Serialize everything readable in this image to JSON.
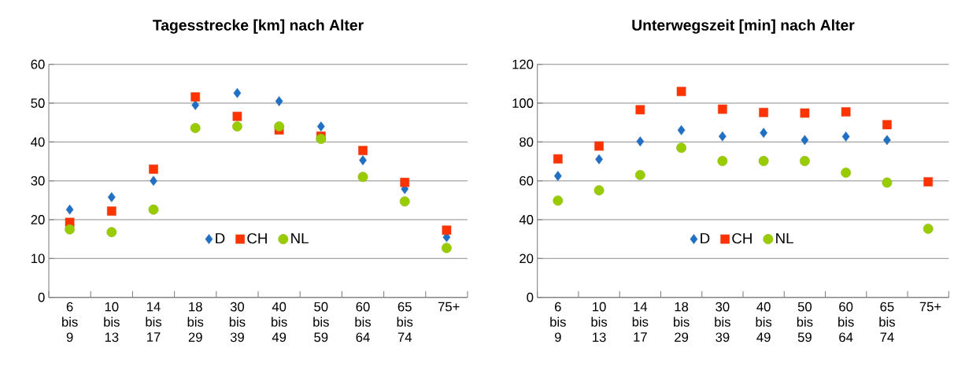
{
  "chart_data": [
    {
      "type": "scatter",
      "title": "Tagesstrecke [km] nach Alter",
      "categories": [
        "6 bis 9",
        "10 bis 13",
        "14 bis 17",
        "18 bis 29",
        "30 bis 39",
        "40 bis 49",
        "50 bis 59",
        "60 bis 64",
        "65 bis 74",
        "75+"
      ],
      "series": [
        {
          "name": "D",
          "color": "#1f6fc5",
          "marker": "diamond",
          "values": [
            22.6,
            25.8,
            30.0,
            49.5,
            52.6,
            50.5,
            44.0,
            35.3,
            27.9,
            15.5
          ]
        },
        {
          "name": "CH",
          "color": "#ff3300",
          "marker": "square",
          "values": [
            19.3,
            22.2,
            33.0,
            51.6,
            46.6,
            43.1,
            41.5,
            37.8,
            29.6,
            17.3
          ]
        },
        {
          "name": "NL",
          "color": "#99cc00",
          "marker": "circle",
          "values": [
            17.5,
            16.8,
            22.6,
            43.6,
            44.0,
            44.0,
            40.8,
            31.0,
            24.7,
            12.7
          ]
        }
      ],
      "ylim": [
        0,
        60
      ],
      "yticks": [
        0,
        10,
        20,
        30,
        40,
        50,
        60
      ],
      "grid": "y",
      "legend": "bottom"
    },
    {
      "type": "scatter",
      "title": "Unterwegszeit [min] nach Alter",
      "categories": [
        "6 bis 9",
        "10 bis 13",
        "14 bis 17",
        "18 bis 29",
        "30 bis 39",
        "40 bis 49",
        "50 bis 59",
        "60 bis 64",
        "65 bis 74",
        "75+"
      ],
      "series": [
        {
          "name": "D",
          "color": "#1f6fc5",
          "marker": "diamond",
          "values": [
            62.5,
            71.1,
            80.3,
            86.1,
            82.9,
            84.7,
            81.0,
            82.8,
            81.0,
            null
          ]
        },
        {
          "name": "CH",
          "color": "#ff3300",
          "marker": "square",
          "values": [
            71.3,
            77.9,
            96.6,
            106.0,
            96.9,
            95.2,
            94.9,
            95.5,
            88.9,
            59.5
          ]
        },
        {
          "name": "NL",
          "color": "#99cc00",
          "marker": "circle",
          "values": [
            49.8,
            55.1,
            63.0,
            77.0,
            70.2,
            70.2,
            70.2,
            64.2,
            59.1,
            35.3
          ]
        }
      ],
      "ylim": [
        0,
        120
      ],
      "yticks": [
        0,
        20,
        40,
        60,
        80,
        100,
        120
      ],
      "grid": "y",
      "legend": "bottom"
    }
  ]
}
